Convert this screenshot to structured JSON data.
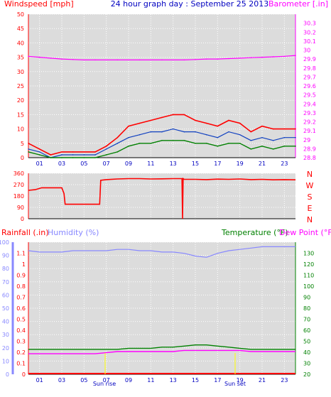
{
  "title": "24 hour graph day : September 25 2013",
  "colors": {
    "background": "#ffffff",
    "plot_background": "#dcdcdc",
    "grid": "#ffffff",
    "wind": "#ff0000",
    "gust": "#1040c0",
    "average": "#008000",
    "barometer": "#ff00ff",
    "direction": "#ff0000",
    "rainfall": "#ff0000",
    "humidity": "#8888ff",
    "temperature": "#008000",
    "dewpoint": "#ff00ff",
    "sun_marker": "#ffff00",
    "title": "#0000c0",
    "axis_black": "#000000"
  },
  "x_ticks": [
    "01",
    "03",
    "05",
    "07",
    "09",
    "11",
    "13",
    "15",
    "17",
    "19",
    "21",
    "23"
  ],
  "chart_data": [
    {
      "type": "line",
      "ylabel_left": "Windspeed [mph]",
      "ylabel_right": "Barometer [.in]",
      "ylim_left": [
        0,
        50
      ],
      "yticks_left": [
        "0",
        "5",
        "10",
        "15",
        "20",
        "25",
        "30",
        "35",
        "40",
        "45",
        "50"
      ],
      "ylim_right": [
        28.8,
        30.4
      ],
      "yticks_right": [
        "28.8",
        "28.9",
        "29",
        "29.1",
        "29.2",
        "29.3",
        "29.4",
        "29.5",
        "29.6",
        "29.7",
        "29.8",
        "29.9",
        "30",
        "30.1",
        "30.2",
        "30.3"
      ],
      "x": [
        0,
        1,
        2,
        3,
        4,
        5,
        6,
        7,
        8,
        9,
        10,
        11,
        12,
        13,
        14,
        15,
        16,
        17,
        18,
        19,
        20,
        21,
        22,
        23,
        24
      ],
      "series": [
        {
          "key": "wind_gust",
          "axis": "left",
          "values": [
            5,
            3,
            1,
            2,
            2,
            2,
            2,
            4,
            7,
            11,
            12,
            13,
            14,
            15,
            15,
            13,
            12,
            11,
            13,
            12,
            9,
            11,
            10,
            10,
            10
          ]
        },
        {
          "key": "wind_speed",
          "axis": "left",
          "values": [
            3,
            2,
            0,
            1,
            1,
            1,
            1,
            3,
            5,
            7,
            8,
            9,
            9,
            10,
            9,
            9,
            8,
            7,
            9,
            8,
            6,
            7,
            6,
            7,
            7
          ]
        },
        {
          "key": "wind_avg",
          "axis": "left",
          "values": [
            2,
            1,
            0,
            0,
            0,
            0,
            0,
            1,
            2,
            4,
            5,
            5,
            6,
            6,
            6,
            5,
            5,
            4,
            5,
            5,
            3,
            4,
            3,
            4,
            4
          ]
        },
        {
          "key": "barometer",
          "axis": "right",
          "values": [
            29.93,
            29.92,
            29.91,
            29.9,
            29.895,
            29.89,
            29.89,
            29.89,
            29.89,
            29.89,
            29.89,
            29.89,
            29.89,
            29.89,
            29.89,
            29.895,
            29.9,
            29.9,
            29.905,
            29.91,
            29.915,
            29.92,
            29.925,
            29.93,
            29.94
          ]
        }
      ]
    },
    {
      "type": "line",
      "ylim": [
        0,
        360
      ],
      "yticks": [
        "0",
        "90",
        "180",
        "270",
        "360"
      ],
      "compass": [
        "N",
        "W",
        "S",
        "E",
        "N"
      ],
      "x": [
        0,
        0.6,
        1.2,
        2,
        3,
        3.2,
        3.3,
        4,
        5,
        6,
        6.4,
        6.5,
        7,
        8,
        9,
        10,
        11,
        12,
        13,
        13.8,
        13.85,
        13.9,
        14,
        15,
        16,
        17,
        18,
        19,
        20,
        21,
        22,
        23,
        24
      ],
      "values": [
        225,
        230,
        245,
        245,
        245,
        200,
        115,
        115,
        115,
        115,
        115,
        305,
        310,
        315,
        318,
        318,
        315,
        316,
        318,
        318,
        0,
        318,
        312,
        312,
        310,
        314,
        312,
        315,
        310,
        312,
        308,
        310,
        308
      ]
    },
    {
      "type": "line",
      "ylabel_left": "Rainfall (.in)",
      "ylabel_left2": "Humidity (%)",
      "ylabel_right": "Temperature (°F)",
      "ylabel_right2": "Dew Point (°F)",
      "ylim_humidity": [
        0,
        100
      ],
      "yticks_humidity": [
        "0",
        "10",
        "20",
        "30",
        "40",
        "50",
        "60",
        "70",
        "80",
        "90",
        "100"
      ],
      "ylim_rain": [
        0,
        1.2
      ],
      "yticks_rain": [
        "0",
        "0.1",
        "0.2",
        "0.3",
        "0.4",
        "0.5",
        "0.6",
        "0.7",
        "0.8",
        "0.9",
        "1",
        "1.1"
      ],
      "ylim_temp": [
        20,
        140
      ],
      "yticks_temp": [
        "20",
        "30",
        "40",
        "50",
        "60",
        "70",
        "80",
        "90",
        "100",
        "110",
        "120",
        "130"
      ],
      "sun_labels": [
        "Sun rise",
        "Sun set"
      ],
      "x": [
        0,
        1,
        2,
        3,
        4,
        5,
        6,
        7,
        8,
        9,
        10,
        11,
        12,
        13,
        14,
        15,
        16,
        17,
        18,
        19,
        20,
        21,
        22,
        23,
        24
      ],
      "series": [
        {
          "key": "humidity",
          "axis": "humidity",
          "values": [
            93,
            92,
            92,
            92,
            93,
            93,
            93,
            93,
            94,
            94,
            93,
            93,
            92,
            92,
            91,
            89,
            88,
            91,
            93,
            94,
            95,
            96,
            96,
            96,
            96
          ]
        },
        {
          "key": "temperature",
          "axis": "temp",
          "values": [
            42,
            42,
            42,
            42,
            42,
            42,
            42,
            42,
            42,
            43,
            43,
            43,
            44,
            44,
            45,
            46,
            46,
            45,
            44,
            43,
            42,
            42,
            42,
            42,
            42
          ]
        },
        {
          "key": "dewpoint",
          "axis": "temp",
          "values": [
            38,
            38,
            38,
            38,
            38,
            38,
            38,
            39,
            40,
            40,
            40,
            40,
            40,
            40,
            41,
            41,
            41,
            41,
            41,
            41,
            40,
            40,
            40,
            40,
            40
          ]
        },
        {
          "key": "rainfall",
          "axis": "rain",
          "values": [
            0,
            0,
            0,
            0,
            0,
            0,
            0,
            0,
            0,
            0,
            0,
            0,
            0,
            0,
            0,
            0,
            0,
            0,
            0,
            0,
            0,
            0,
            0,
            0,
            0
          ]
        }
      ]
    }
  ]
}
